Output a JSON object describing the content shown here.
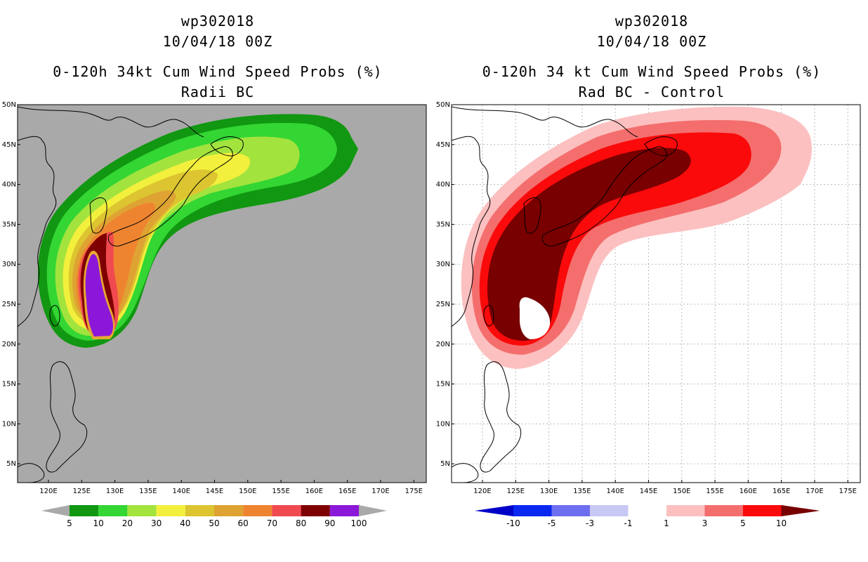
{
  "left": {
    "title_line1": "wp302018",
    "title_line2": "10/04/18 00Z",
    "title_line3": "0-120h 34kt Cum Wind Speed Probs (%)",
    "title_line4": "Radii BC",
    "background": "#a9a9a9",
    "legend": {
      "colors": [
        "#119711",
        "#33d633",
        "#a3e33e",
        "#f2f03c",
        "#dcc530",
        "#dea332",
        "#ef8430",
        "#f04a50",
        "#7f0000",
        "#8b18d8"
      ],
      "labels": [
        "5",
        "10",
        "20",
        "30",
        "40",
        "50",
        "60",
        "70",
        "80",
        "90",
        "100"
      ]
    }
  },
  "right": {
    "title_line1": "wp302018",
    "title_line2": "10/04/18 00Z",
    "title_line3": "0-120h 34 kt Cum Wind Speed Probs (%)",
    "title_line4": "Rad BC - Control",
    "background": "#ffffff",
    "legend": {
      "colors": [
        "#0000c8",
        "#0a28f0",
        "#6e6ef0",
        "#c8c8f5",
        "#ffffff",
        "#fcc0c0",
        "#f46e6e",
        "#fa0a0a",
        "#780000"
      ],
      "labels": [
        "-10",
        "-5",
        "-3",
        "-1",
        "1",
        "3",
        "5",
        "10"
      ]
    }
  },
  "axes": {
    "lat_labels": [
      "50N",
      "45N",
      "40N",
      "35N",
      "30N",
      "25N",
      "20N",
      "15N",
      "10N",
      "5N"
    ],
    "lon_labels": [
      "120E",
      "125E",
      "130E",
      "135E",
      "140E",
      "145E",
      "150E",
      "155E",
      "160E",
      "165E",
      "170E",
      "175E"
    ]
  }
}
